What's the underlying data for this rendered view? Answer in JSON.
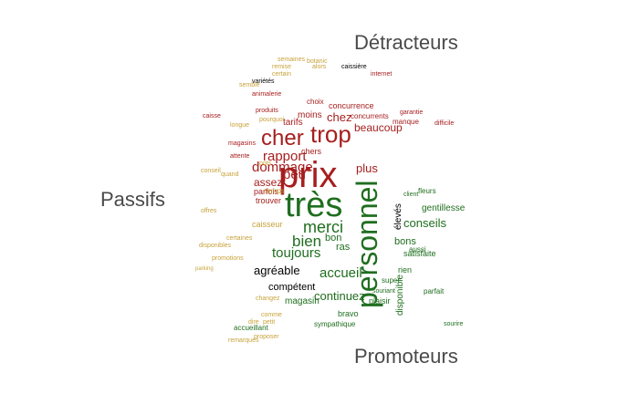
{
  "categories": {
    "detracteurs": "Détracteurs",
    "passifs": "Passifs",
    "promoteurs": "Promoteurs"
  },
  "colors": {
    "detracteurs": "#a61e1e",
    "passifs": "#c8a23a",
    "promoteurs": "#1f6e1f"
  },
  "words": {
    "prix": {
      "text": "prix",
      "group": "detracteurs",
      "weight": 10
    },
    "trop": {
      "text": "trop",
      "group": "detracteurs",
      "weight": 7
    },
    "cher": {
      "text": "cher",
      "group": "detracteurs",
      "weight": 7
    },
    "rapport": {
      "text": "rapport",
      "group": "detracteurs",
      "weight": 5
    },
    "dommage": {
      "text": "dommage",
      "group": "detracteurs",
      "weight": 5
    },
    "peu": {
      "text": "peu",
      "group": "detracteurs",
      "weight": 4
    },
    "chez": {
      "text": "chez",
      "group": "detracteurs",
      "weight": 3
    },
    "beaucoup": {
      "text": "beaucoup",
      "group": "detracteurs",
      "weight": 3
    },
    "concurrence": {
      "text": "concurrence",
      "group": "detracteurs",
      "weight": 2
    },
    "moins": {
      "text": "moins",
      "group": "detracteurs",
      "weight": 2
    },
    "tarifs": {
      "text": "tarifs",
      "group": "detracteurs",
      "weight": 2
    },
    "concurrents": {
      "text": "concurrents",
      "group": "detracteurs",
      "weight": 2
    },
    "plus": {
      "text": "plus",
      "group": "detracteurs",
      "weight": 3
    },
    "assez": {
      "text": "assez",
      "group": "detracteurs",
      "weight": 3
    },
    "manque": {
      "text": "manque",
      "group": "detracteurs",
      "weight": 2
    },
    "choix": {
      "text": "choix",
      "group": "detracteurs",
      "weight": 2
    },
    "chers": {
      "text": "chers",
      "group": "detracteurs",
      "weight": 2
    },
    "parfois": {
      "text": "parfois",
      "group": "detracteurs",
      "weight": 2
    },
    "trouver": {
      "text": "trouver",
      "group": "detracteurs",
      "weight": 2
    },
    "caisse": {
      "text": "caisse",
      "group": "detracteurs",
      "weight": 1
    },
    "produits": {
      "text": "produits",
      "group": "detracteurs",
      "weight": 1
    },
    "magasins": {
      "text": "magasins",
      "group": "detracteurs",
      "weight": 1
    },
    "attente": {
      "text": "attente",
      "group": "detracteurs",
      "weight": 1
    },
    "difficile": {
      "text": "difficile",
      "group": "detracteurs",
      "weight": 1
    },
    "garantie": {
      "text": "garantie",
      "group": "detracteurs",
      "weight": 1
    },
    "internet": {
      "text": "internet",
      "group": "detracteurs",
      "weight": 1
    },
    "animalerie": {
      "text": "animalerie",
      "group": "detracteurs",
      "weight": 1
    },
    "tres": {
      "text": "très",
      "group": "promoteurs",
      "weight": 10
    },
    "personnel": {
      "text": "personnel",
      "group": "promoteurs",
      "weight": 10
    },
    "merci": {
      "text": "merci",
      "group": "promoteurs",
      "weight": 6
    },
    "bien": {
      "text": "bien",
      "group": "promoteurs",
      "weight": 6
    },
    "toujours": {
      "text": "toujours",
      "group": "promoteurs",
      "weight": 5
    },
    "accueil": {
      "text": "accueil",
      "group": "promoteurs",
      "weight": 5
    },
    "agreable": {
      "text": "agréable",
      "group": "promoteurs",
      "weight": 4
    },
    "conseils": {
      "text": "conseils",
      "group": "promoteurs",
      "weight": 4
    },
    "continuez": {
      "text": "continuez",
      "group": "promoteurs",
      "weight": 4
    },
    "bon": {
      "text": "bon",
      "group": "promoteurs",
      "weight": 3
    },
    "ras": {
      "text": "ras",
      "group": "promoteurs",
      "weight": 3
    },
    "bons": {
      "text": "bons",
      "group": "promoteurs",
      "weight": 3
    },
    "competent": {
      "text": "compétent",
      "group": "promoteurs",
      "weight": 3
    },
    "magasin": {
      "text": "magasin",
      "group": "promoteurs",
      "weight": 3
    },
    "disponible": {
      "text": "disponible",
      "group": "promoteurs",
      "weight": 2
    },
    "gentillesse": {
      "text": "gentillesse",
      "group": "promoteurs",
      "weight": 2
    },
    "eleves": {
      "text": "élevés",
      "group": "promoteurs",
      "weight": 2
    },
    "satisfaite": {
      "text": "satisfaite",
      "group": "promoteurs",
      "weight": 2
    },
    "rien": {
      "text": "rien",
      "group": "promoteurs",
      "weight": 2
    },
    "aussi": {
      "text": "aussi",
      "group": "promoteurs",
      "weight": 2
    },
    "plaisir": {
      "text": "plaisir",
      "group": "promoteurs",
      "weight": 2
    },
    "bravo": {
      "text": "bravo",
      "group": "promoteurs",
      "weight": 2
    },
    "parfait": {
      "text": "parfait",
      "group": "promoteurs",
      "weight": 1
    },
    "sympathique": {
      "text": "sympathique",
      "group": "promoteurs",
      "weight": 1
    },
    "accueillant": {
      "text": "accueillant",
      "group": "promoteurs",
      "weight": 1
    },
    "super": {
      "text": "super",
      "group": "promoteurs",
      "weight": 1
    },
    "fleurs": {
      "text": "fleurs",
      "group": "promoteurs",
      "weight": 1
    },
    "client": {
      "text": "client",
      "group": "promoteurs",
      "weight": 1
    },
    "sourire": {
      "text": "sourire",
      "group": "promoteurs",
      "weight": 1
    },
    "souriant": {
      "text": "souriant",
      "group": "promoteurs",
      "weight": 1
    },
    "caisseur": {
      "text": "caisseur",
      "group": "passifs",
      "weight": 1
    },
    "promotions": {
      "text": "promotions",
      "group": "passifs",
      "weight": 1
    },
    "disponibles": {
      "text": "disponibles",
      "group": "passifs",
      "weight": 1
    },
    "certaines": {
      "text": "certaines",
      "group": "passifs",
      "weight": 1
    },
    "changez": {
      "text": "changez",
      "group": "passifs",
      "weight": 1
    },
    "temps": {
      "text": "temps",
      "group": "passifs",
      "weight": 1
    },
    "quand": {
      "text": "quand",
      "group": "passifs",
      "weight": 1
    },
    "semaines": {
      "text": "semaines",
      "group": "passifs",
      "weight": 1
    },
    "botanic": {
      "text": "botanic",
      "group": "passifs",
      "weight": 1
    },
    "remise": {
      "text": "remise",
      "group": "passifs",
      "weight": 1
    },
    "varietes": {
      "text": "variétés",
      "group": "passifs",
      "weight": 1
    },
    "conseil": {
      "text": "conseil",
      "group": "passifs",
      "weight": 1
    },
    "offres": {
      "text": "offres",
      "group": "passifs",
      "weight": 1
    },
    "longue": {
      "text": "longue",
      "group": "passifs",
      "weight": 1
    },
    "pourquoi": {
      "text": "pourquoi",
      "group": "passifs",
      "weight": 1
    },
    "parking": {
      "text": "parking",
      "group": "passifs",
      "weight": 1
    },
    "remarques": {
      "text": "remarques",
      "group": "passifs",
      "weight": 1
    },
    "proposer": {
      "text": "proposer",
      "group": "passifs",
      "weight": 1
    },
    "comme": {
      "text": "comme",
      "group": "passifs",
      "weight": 1
    },
    "petit": {
      "text": "petit",
      "group": "passifs",
      "weight": 1
    },
    "dire": {
      "text": "dire",
      "group": "passifs",
      "weight": 1
    },
    "alors": {
      "text": "alors",
      "group": "passifs",
      "weight": 1
    },
    "semble": {
      "text": "semble",
      "group": "passifs",
      "weight": 1
    },
    "pots": {
      "text": "pots",
      "group": "passifs",
      "weight": 1
    },
    "caissiere": {
      "text": "caissière",
      "group": "passifs",
      "weight": 1
    },
    "certain": {
      "text": "certain",
      "group": "passifs",
      "weight": 1
    }
  }
}
